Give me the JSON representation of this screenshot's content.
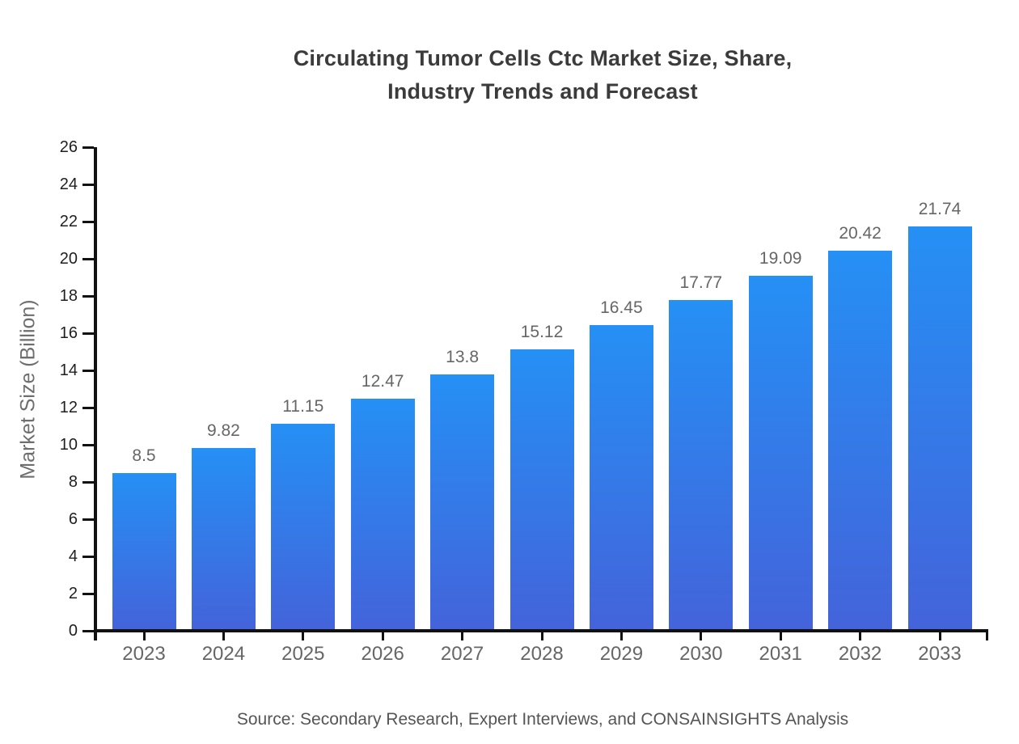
{
  "chart_data": {
    "type": "bar",
    "title": "Circulating Tumor Cells Ctc Market Size, Share, Industry Trends and Forecast",
    "title_lines": [
      "Circulating Tumor Cells Ctc Market Size, Share,",
      "Industry Trends and Forecast"
    ],
    "xlabel": "",
    "ylabel": "Market Size (Billion)",
    "categories": [
      "2023",
      "2024",
      "2025",
      "2026",
      "2027",
      "2028",
      "2029",
      "2030",
      "2031",
      "2032",
      "2033"
    ],
    "values": [
      8.5,
      9.82,
      11.15,
      12.47,
      13.8,
      15.12,
      16.45,
      17.77,
      19.09,
      20.42,
      21.74
    ],
    "value_labels": [
      "8.5",
      "9.82",
      "11.15",
      "12.47",
      "13.8",
      "15.12",
      "16.45",
      "17.77",
      "19.09",
      "20.42",
      "21.74"
    ],
    "ylim": [
      0,
      26
    ],
    "yticks": [
      0,
      2,
      4,
      6,
      8,
      10,
      12,
      14,
      16,
      18,
      20,
      22,
      24,
      26
    ],
    "grid": false,
    "legend": false,
    "colors": {
      "bar_gradient_top": "#2590f5",
      "bar_gradient_bottom": "#4463da",
      "axis": "#111111",
      "title_text": "#3b3b3b",
      "y_tick_text": "#1f1f1f",
      "x_tick_text": "#666666",
      "bar_label_text": "#666666",
      "y_axis_title_text": "#6e6e6e",
      "source_text": "#555555"
    }
  },
  "footer": {
    "source": "Source: Secondary Research, Expert Interviews, and CONSAINSIGHTS Analysis"
  }
}
